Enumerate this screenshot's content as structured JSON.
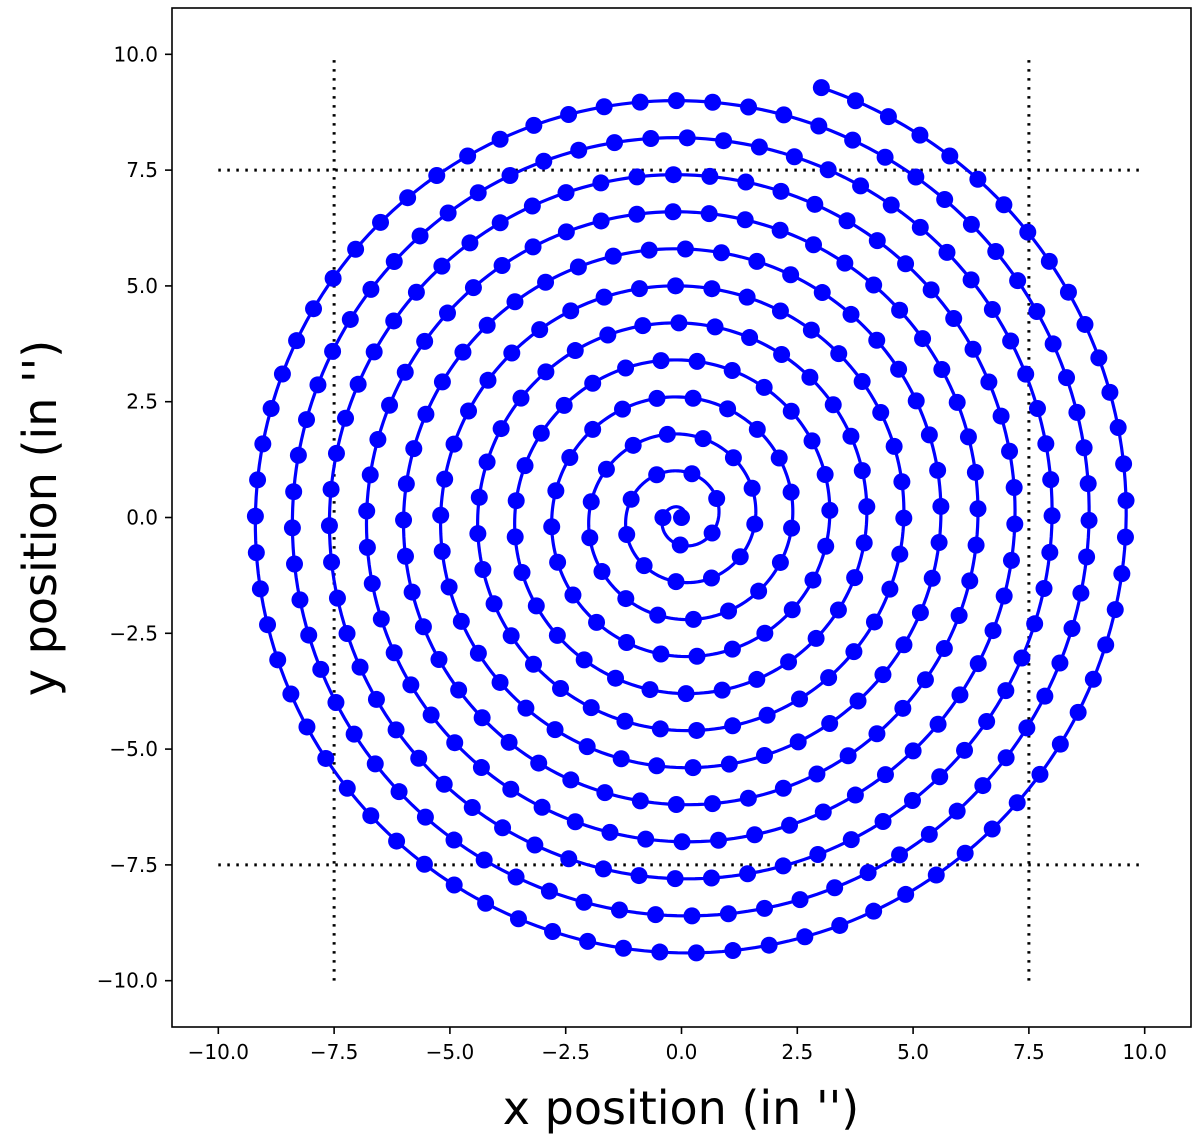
{
  "chart_data": {
    "type": "scatter",
    "title": "",
    "xlabel": "x position (in '')",
    "ylabel": "y position (in '')",
    "xlim": [
      -11.0,
      11.0
    ],
    "ylim": [
      -11.0,
      11.0
    ],
    "x_ticks": [
      -10.0,
      -7.5,
      -5.0,
      -2.5,
      0.0,
      2.5,
      5.0,
      7.5,
      10.0
    ],
    "y_ticks": [
      -10.0,
      -7.5,
      -5.0,
      -2.5,
      0.0,
      2.5,
      5.0,
      7.5,
      10.0
    ],
    "x_tick_labels": [
      "−10.0",
      "−7.5",
      "−5.0",
      "−2.5",
      "0.0",
      "2.5",
      "5.0",
      "7.5",
      "10.0"
    ],
    "y_tick_labels": [
      "−10.0",
      "−7.5",
      "−5.0",
      "−2.5",
      "0.0",
      "2.5",
      "5.0",
      "7.5",
      "10.0"
    ],
    "grid": false,
    "spiral": {
      "shape": "archimedean",
      "center": [
        0.0,
        0.0
      ],
      "spacing_per_turn": 0.8,
      "turns": 12.2,
      "point_spacing": 0.78,
      "line_color": "#0000ff",
      "marker_color": "#0000ff"
    },
    "reference_lines": [
      {
        "orientation": "vertical",
        "x": -7.5,
        "from": -10.0,
        "to": 10.0,
        "style": "dotted",
        "color": "#000000"
      },
      {
        "orientation": "vertical",
        "x": 7.5,
        "from": -10.0,
        "to": 10.0,
        "style": "dotted",
        "color": "#000000"
      },
      {
        "orientation": "horizontal",
        "y": 7.5,
        "from": -10.0,
        "to": 10.0,
        "style": "dotted",
        "color": "#000000"
      },
      {
        "orientation": "horizontal",
        "y": -7.5,
        "from": -10.0,
        "to": 10.0,
        "style": "dotted",
        "color": "#000000"
      }
    ]
  }
}
